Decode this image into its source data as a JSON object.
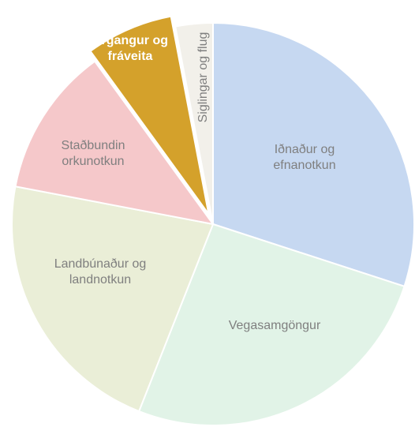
{
  "chart_data": {
    "type": "pie",
    "categories": [
      "Iðnaður og efnanotkun",
      "Vegasamgöngur",
      "Landbúnaður og landnotkun",
      "Staðbundin orkunotkun",
      "Úrgangur og fráveita",
      "Siglingar og flug"
    ],
    "values": [
      30,
      26,
      22,
      12,
      7,
      3
    ],
    "colors": [
      "#c6d8f1",
      "#e1f3e7",
      "#eaeed7",
      "#f5c8ca",
      "#d4a12b",
      "#f2f0ea"
    ],
    "exploded": [
      false,
      false,
      false,
      false,
      true,
      false
    ]
  }
}
